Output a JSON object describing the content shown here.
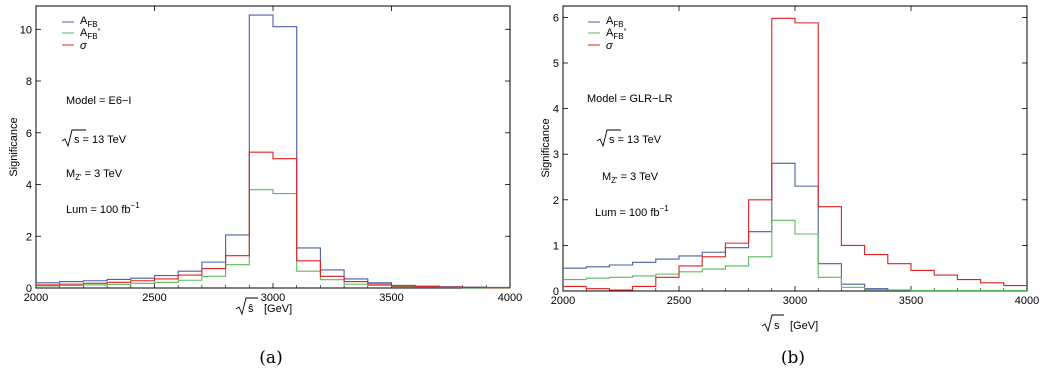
{
  "chart_data": [
    {
      "type": "line",
      "step": true,
      "caption": "(a)",
      "xlabel": "√ŝ  [GeV]",
      "ylabel": "Significance",
      "xlim": [
        2000,
        4000
      ],
      "ylim": [
        0,
        10.9
      ],
      "x_ticks": [
        2000,
        2500,
        3000,
        3500,
        4000
      ],
      "y_ticks": [
        0,
        2,
        4,
        6,
        8,
        10
      ],
      "bin_edges": [
        2000,
        2100,
        2200,
        2300,
        2400,
        2500,
        2600,
        2700,
        2800,
        2900,
        3000,
        3100,
        3200,
        3300,
        3400,
        3500,
        3600,
        3700,
        3800,
        3900,
        4000
      ],
      "legend": [
        "A_FB",
        "A_FB*",
        "σ"
      ],
      "annotations": [
        {
          "text": "Model = E6−I"
        },
        {
          "text": "√s = 13 TeV"
        },
        {
          "text": "M_Z' = 3 TeV"
        },
        {
          "text": "Lum = 100 fb⁻¹"
        }
      ],
      "series": [
        {
          "name": "A_FB",
          "color": "#4b5fa8",
          "values": [
            0.2,
            0.25,
            0.28,
            0.33,
            0.38,
            0.48,
            0.65,
            1.0,
            2.05,
            10.55,
            10.1,
            1.55,
            0.7,
            0.35,
            0.2,
            0.1,
            0.07,
            0.05,
            0.03,
            0.02
          ]
        },
        {
          "name": "A_FB*",
          "color": "#5cb85c",
          "values": [
            0.08,
            0.1,
            0.12,
            0.14,
            0.18,
            0.22,
            0.3,
            0.45,
            0.9,
            3.8,
            3.65,
            0.65,
            0.32,
            0.15,
            0.1,
            0.05,
            0.03,
            0.02,
            0.01,
            0.01
          ]
        },
        {
          "name": "σ",
          "color": "#e02020",
          "values": [
            0.12,
            0.15,
            0.18,
            0.22,
            0.28,
            0.35,
            0.5,
            0.75,
            1.25,
            5.25,
            5.0,
            1.05,
            0.45,
            0.25,
            0.15,
            0.08,
            0.05,
            0.03,
            0.02,
            0.01
          ]
        }
      ]
    },
    {
      "type": "line",
      "step": true,
      "caption": "(b)",
      "xlabel": "√s  [GeV]",
      "ylabel": "Significance",
      "xlim": [
        2000,
        4000
      ],
      "ylim": [
        0,
        6.25
      ],
      "x_ticks": [
        2000,
        2500,
        3000,
        3500,
        4000
      ],
      "y_ticks": [
        0,
        1,
        2,
        3,
        4,
        5,
        6
      ],
      "bin_edges": [
        2000,
        2100,
        2200,
        2300,
        2400,
        2500,
        2600,
        2700,
        2800,
        2900,
        3000,
        3100,
        3200,
        3300,
        3400,
        3500,
        3600,
        3700,
        3800,
        3900,
        4000
      ],
      "legend": [
        "A_FB",
        "A_FB*",
        "σ"
      ],
      "annotations": [
        {
          "text": "Model = GLR−LR"
        },
        {
          "text": "√s = 13 TeV"
        },
        {
          "text": "M_Z' = 3 TeV"
        },
        {
          "text": "Lum = 100 fb⁻¹"
        }
      ],
      "series": [
        {
          "name": "A_FB",
          "color": "#4b5fa8",
          "values": [
            0.5,
            0.53,
            0.57,
            0.63,
            0.7,
            0.77,
            0.85,
            0.95,
            1.3,
            2.8,
            2.3,
            0.6,
            0.15,
            0.05,
            0.02,
            0.01,
            0.01,
            0.01,
            0.01,
            0.01
          ]
        },
        {
          "name": "A_FB*",
          "color": "#5cb85c",
          "values": [
            0.25,
            0.28,
            0.3,
            0.33,
            0.37,
            0.42,
            0.48,
            0.55,
            0.75,
            1.55,
            1.25,
            0.3,
            0.08,
            0.03,
            0.02,
            0.01,
            0.01,
            0.01,
            0.01,
            0.01
          ]
        },
        {
          "name": "σ",
          "color": "#e02020",
          "values": [
            0.1,
            0.05,
            0.02,
            0.1,
            0.3,
            0.55,
            0.75,
            1.05,
            2.0,
            5.98,
            5.88,
            1.85,
            1.0,
            0.8,
            0.6,
            0.45,
            0.35,
            0.25,
            0.18,
            0.12
          ]
        }
      ]
    }
  ]
}
